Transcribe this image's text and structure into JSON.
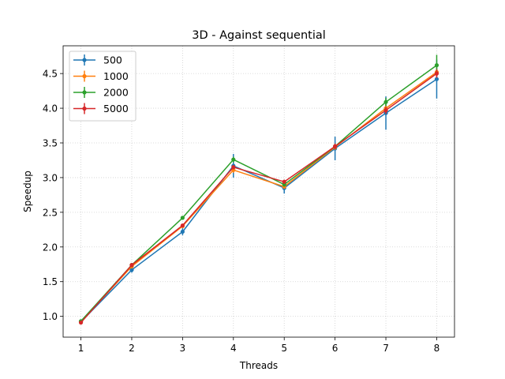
{
  "chart_data": {
    "type": "line",
    "title": "3D - Against sequential",
    "xlabel": "Threads",
    "ylabel": "Speedup",
    "x": [
      1,
      2,
      3,
      4,
      5,
      6,
      7,
      8
    ],
    "xlim": [
      0.65,
      8.35
    ],
    "ylim": [
      0.7,
      4.9
    ],
    "xticks": [
      1,
      2,
      3,
      4,
      5,
      6,
      7,
      8
    ],
    "yticks": [
      1.0,
      1.5,
      2.0,
      2.5,
      3.0,
      3.5,
      4.0,
      4.5
    ],
    "ytick_labels": [
      "1.0",
      "1.5",
      "2.0",
      "2.5",
      "3.0",
      "3.5",
      "4.0",
      "4.5"
    ],
    "grid": true,
    "legend_position": "top-left",
    "series": [
      {
        "name": "500",
        "color": "#1f77b4",
        "values": [
          0.92,
          1.67,
          2.22,
          3.17,
          2.85,
          3.42,
          3.93,
          4.42
        ],
        "errors": [
          0.02,
          0.04,
          0.05,
          0.17,
          0.08,
          0.17,
          0.24,
          0.28
        ]
      },
      {
        "name": "1000",
        "color": "#ff7f0e",
        "values": [
          0.92,
          1.72,
          2.3,
          3.11,
          2.87,
          3.44,
          4.0,
          4.52
        ],
        "errors": [
          0.01,
          0.02,
          0.02,
          0.04,
          0.03,
          0.04,
          0.05,
          0.06
        ]
      },
      {
        "name": "2000",
        "color": "#2ca02c",
        "values": [
          0.93,
          1.74,
          2.42,
          3.26,
          2.9,
          3.45,
          4.09,
          4.62
        ],
        "errors": [
          0.01,
          0.02,
          0.02,
          0.04,
          0.03,
          0.04,
          0.06,
          0.15
        ]
      },
      {
        "name": "5000",
        "color": "#d62728",
        "values": [
          0.91,
          1.74,
          2.31,
          3.15,
          2.94,
          3.45,
          3.97,
          4.5
        ],
        "errors": [
          0.01,
          0.02,
          0.02,
          0.03,
          0.03,
          0.04,
          0.05,
          0.06
        ]
      }
    ]
  }
}
